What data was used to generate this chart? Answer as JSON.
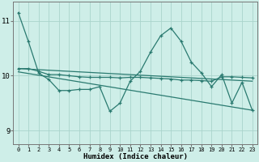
{
  "background_color": "#ceeee8",
  "grid_color": "#aad4cc",
  "line_color": "#2a7a70",
  "xlabel": "Humidex (Indice chaleur)",
  "ylim": [
    8.75,
    11.35
  ],
  "xlim": [
    -0.5,
    23.5
  ],
  "yticks": [
    9,
    10,
    11
  ],
  "xticks": [
    0,
    1,
    2,
    3,
    4,
    5,
    6,
    7,
    8,
    9,
    10,
    11,
    12,
    13,
    14,
    15,
    16,
    17,
    18,
    19,
    20,
    21,
    22,
    23
  ],
  "series1_x": [
    0,
    1,
    2,
    3,
    4,
    5,
    6,
    7,
    8,
    9,
    10,
    11,
    12,
    13,
    14,
    15,
    16,
    17,
    18,
    19,
    20,
    21,
    22,
    23
  ],
  "series1_y": [
    11.15,
    10.62,
    10.05,
    9.93,
    9.73,
    9.73,
    9.75,
    9.75,
    9.8,
    9.35,
    9.5,
    9.9,
    10.08,
    10.43,
    10.73,
    10.87,
    10.63,
    10.25,
    10.05,
    9.8,
    10.02,
    9.5,
    9.88,
    9.37
  ],
  "series2_x": [
    0,
    1,
    2,
    3,
    4,
    5,
    6,
    7,
    8,
    9,
    10,
    11,
    12,
    13,
    14,
    15,
    16,
    17,
    18,
    19,
    20,
    21,
    22,
    23
  ],
  "series2_y": [
    10.13,
    10.13,
    10.08,
    10.02,
    10.02,
    10.0,
    9.98,
    9.97,
    9.97,
    9.97,
    9.96,
    9.97,
    9.97,
    9.96,
    9.95,
    9.94,
    9.92,
    9.92,
    9.91,
    9.9,
    9.98,
    9.98,
    9.97,
    9.96
  ],
  "series3_x": [
    0,
    23
  ],
  "series3_y": [
    10.13,
    9.9
  ],
  "series4_x": [
    0,
    23
  ],
  "series4_y": [
    10.07,
    9.37
  ]
}
